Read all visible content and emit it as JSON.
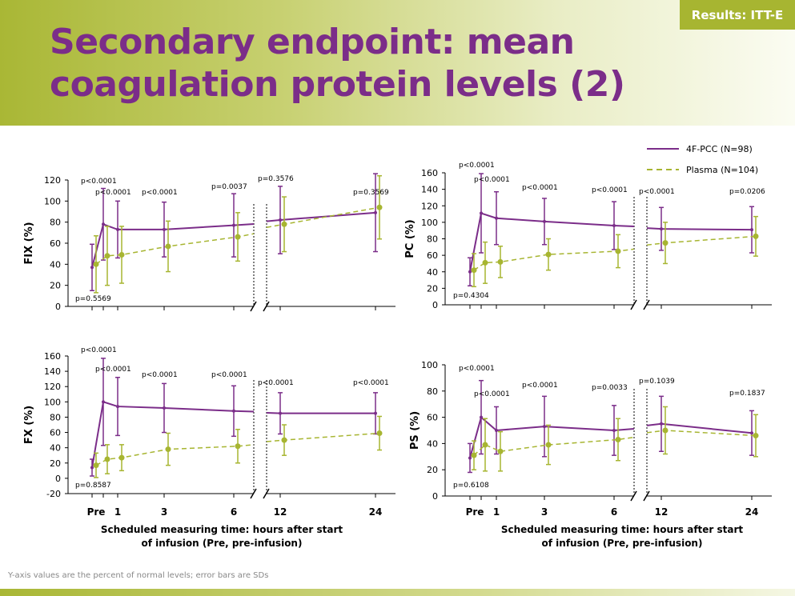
{
  "header": {
    "title": "Secondary endpoint: mean coagulation protein levels (2)",
    "badge": "Results: ITT-E"
  },
  "footnote": "Y-axis values are the percent of normal levels; error bars are SDs",
  "colors": {
    "pcc": "#7b2d89",
    "plasma": "#a7b531",
    "axis": "#000000"
  },
  "legend": [
    "4F-PCC (N=98)",
    "Plasma (N=104)"
  ],
  "x_axis": {
    "tick_labels": [
      "Pre",
      "1",
      "3",
      "6",
      "12",
      "24"
    ],
    "label_line1": "Scheduled measuring time: hours after start",
    "label_line2": "of infusion (Pre, pre-infusion)"
  },
  "chart_data": [
    {
      "type": "line",
      "ylabel": "FIX (%)",
      "ylim": [
        0,
        120
      ],
      "yticks": [
        0,
        20,
        40,
        60,
        80,
        100,
        120
      ],
      "x": [
        "Pre",
        "0.5",
        "1",
        "3",
        "6",
        "12",
        "24"
      ],
      "series": [
        {
          "name": "4F-PCC (N=98)",
          "values": [
            37,
            78,
            73,
            73,
            77,
            82,
            89
          ],
          "sd": [
            22,
            34,
            27,
            26,
            30,
            32,
            37
          ]
        },
        {
          "name": "Plasma (N=104)",
          "values": [
            40,
            48,
            49,
            57,
            66,
            78,
            94
          ],
          "sd": [
            27,
            28,
            27,
            24,
            23,
            26,
            30
          ]
        }
      ],
      "p_values": [
        "p=0.5569",
        "p<0.0001",
        "p<0.0001",
        "p<0.0001",
        "p=0.0037",
        "p=0.3576",
        "p=0.3569"
      ]
    },
    {
      "type": "line",
      "ylabel": "PC (%)",
      "ylim": [
        0,
        160
      ],
      "yticks": [
        0,
        20,
        40,
        60,
        80,
        100,
        120,
        140,
        160
      ],
      "x": [
        "Pre",
        "0.5",
        "1",
        "3",
        "6",
        "12",
        "24"
      ],
      "series": [
        {
          "name": "4F-PCC (N=98)",
          "values": [
            40,
            111,
            105,
            101,
            96,
            92,
            91
          ],
          "sd": [
            17,
            48,
            32,
            28,
            29,
            26,
            28
          ]
        },
        {
          "name": "Plasma (N=104)",
          "values": [
            42,
            51,
            52,
            61,
            65,
            75,
            83
          ],
          "sd": [
            20,
            25,
            19,
            19,
            20,
            25,
            24
          ]
        }
      ],
      "p_values": [
        "p=0.4304",
        "p<0.0001",
        "p<0.0001",
        "p<0.0001",
        "p<0.0001",
        "p<0.0001",
        "p=0.0206"
      ]
    },
    {
      "type": "line",
      "ylabel": "FX (%)",
      "ylim": [
        -20,
        160
      ],
      "yticks": [
        -20,
        0,
        20,
        40,
        60,
        80,
        100,
        120,
        140,
        160
      ],
      "x": [
        "Pre",
        "0.5",
        "1",
        "3",
        "6",
        "12",
        "24"
      ],
      "series": [
        {
          "name": "4F-PCC (N=98)",
          "values": [
            14,
            100,
            94,
            92,
            88,
            85,
            85
          ],
          "sd": [
            11,
            57,
            38,
            32,
            33,
            27,
            27
          ]
        },
        {
          "name": "Plasma (N=104)",
          "values": [
            17,
            25,
            27,
            38,
            42,
            50,
            59
          ],
          "sd": [
            16,
            19,
            17,
            21,
            22,
            20,
            22
          ]
        }
      ],
      "p_values": [
        "p=0.8587",
        "p<0.0001",
        "p<0.0001",
        "p<0.0001",
        "p<0.0001",
        "p<0.0001",
        "p<0.0001"
      ]
    },
    {
      "type": "line",
      "ylabel": "PS (%)",
      "ylim": [
        0,
        100
      ],
      "yticks": [
        0,
        20,
        40,
        60,
        80,
        100
      ],
      "x": [
        "Pre",
        "0.5",
        "1",
        "3",
        "6",
        "12",
        "24"
      ],
      "series": [
        {
          "name": "4F-PCC (N=98)",
          "values": [
            29,
            60,
            50,
            53,
            50,
            55,
            48
          ],
          "sd": [
            11,
            28,
            18,
            23,
            19,
            21,
            17
          ]
        },
        {
          "name": "Plasma (N=104)",
          "values": [
            31,
            39,
            34,
            39,
            43,
            50,
            46
          ],
          "sd": [
            11,
            20,
            15,
            15,
            16,
            18,
            16
          ]
        }
      ],
      "p_values": [
        "p=0.6108",
        "p<0.0001",
        "p<0.0001",
        "p<0.0001",
        "p=0.0033",
        "p=0.1039",
        "p=0.1837"
      ]
    }
  ]
}
